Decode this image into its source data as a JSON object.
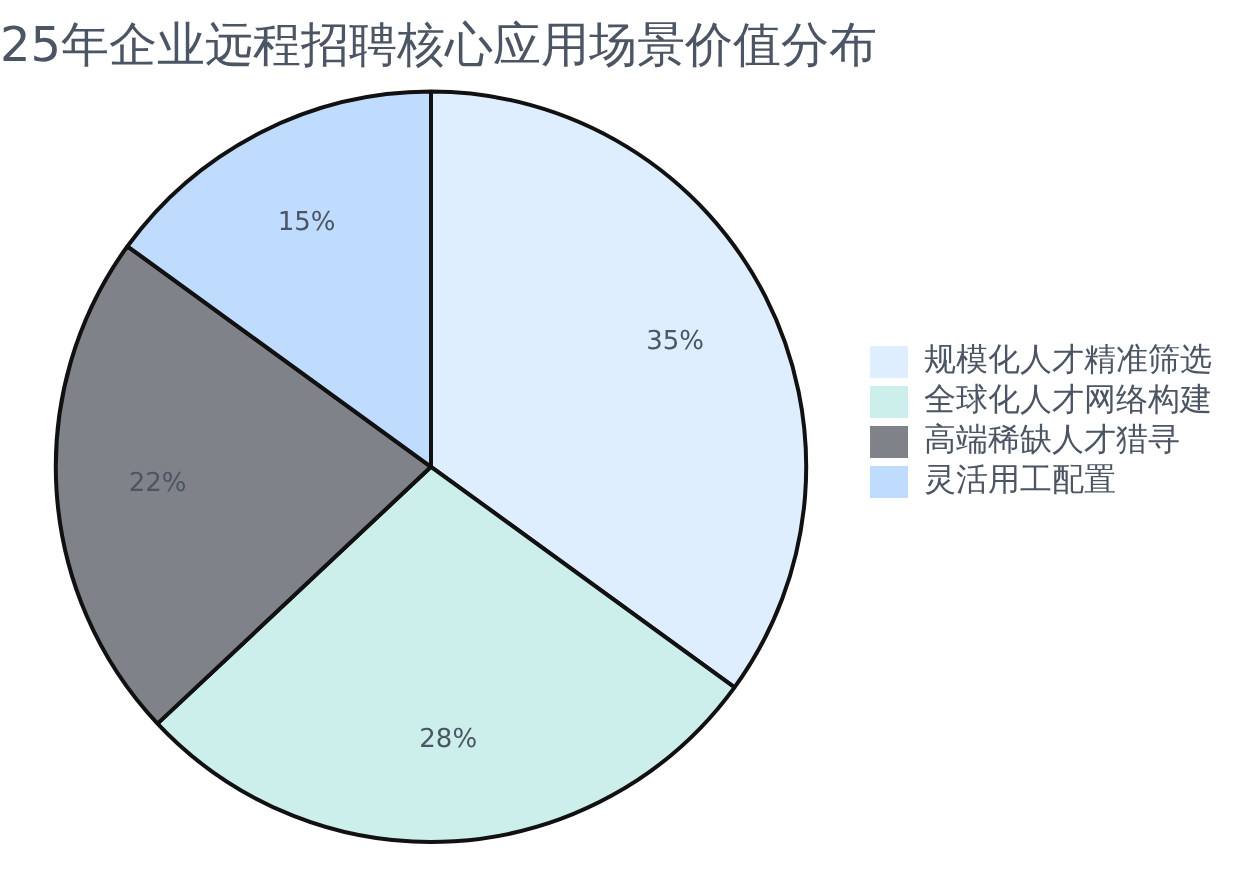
{
  "chart_data": {
    "type": "pie",
    "title": "25年企业远程招聘核心应用场景价值分布",
    "categories": [
      "规模化人才精准筛选",
      "全球化人才网络构建",
      "高端稀缺人才猎寻",
      "灵活用工配置"
    ],
    "values": [
      35,
      28,
      22,
      15
    ],
    "value_labels": [
      "35%",
      "28%",
      "22%",
      "15%"
    ],
    "colors": [
      "#dfeeff",
      "#cdefeb",
      "#7f8389",
      "#bfdbfe"
    ],
    "legend": "right"
  }
}
